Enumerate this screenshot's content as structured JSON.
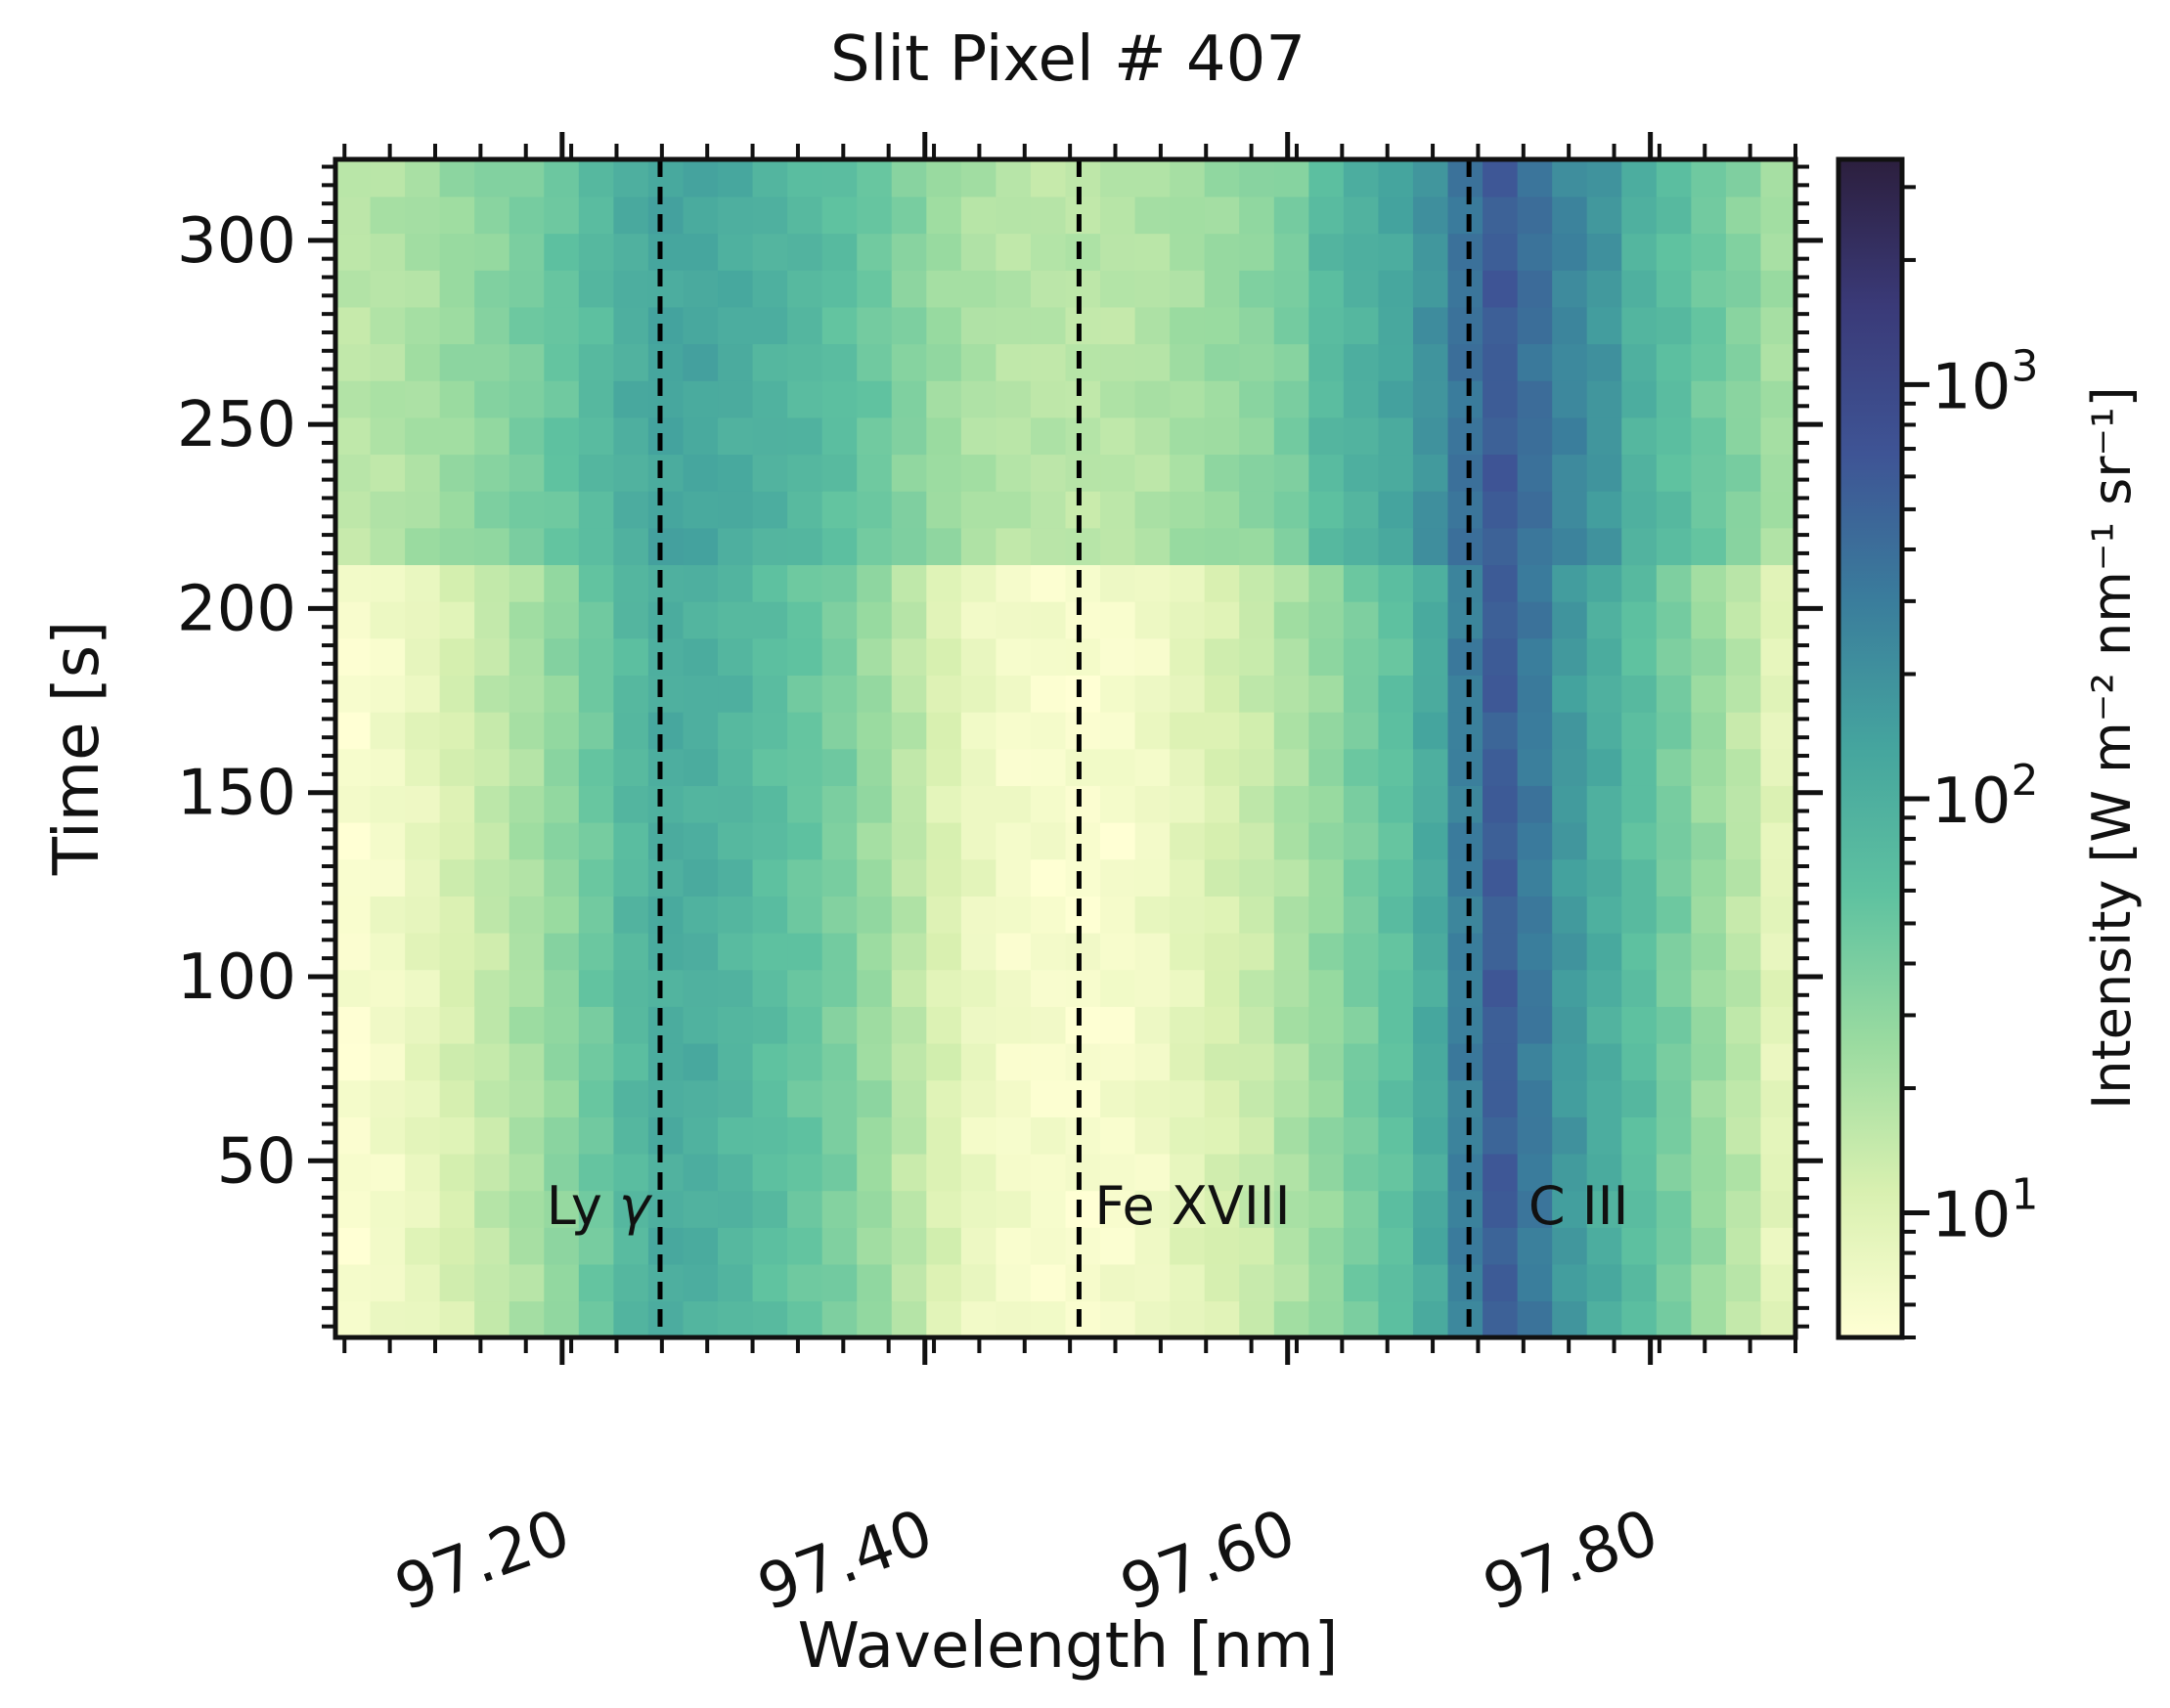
{
  "chart_data": {
    "type": "heatmap",
    "title": "Slit Pixel # 407",
    "xlabel": "Wavelength [nm]",
    "ylabel": "Time [s]",
    "colorbar_label": "Intensity [W m⁻² nm⁻¹ sr⁻¹]",
    "colormap": [
      "#ffffd4",
      "#d8f0b0",
      "#9adba0",
      "#5fc2a0",
      "#45a59e",
      "#3a7d9c",
      "#3e5495",
      "#3a3a78",
      "#2c1f3e"
    ],
    "xlim": [
      97.075,
      97.88
    ],
    "ylim": [
      2,
      322
    ],
    "x_ticks": [
      97.2,
      97.4,
      97.6,
      97.8
    ],
    "x_tick_labels": [
      "97.20",
      "97.40",
      "97.60",
      "97.80"
    ],
    "y_ticks": [
      50,
      100,
      150,
      200,
      250,
      300
    ],
    "y_tick_labels": [
      "50",
      "100",
      "150",
      "200",
      "250",
      "300"
    ],
    "colorbar_scale": "log",
    "colorbar_range": [
      5,
      3500
    ],
    "colorbar_ticks": [
      {
        "value": 10,
        "base": "10",
        "exp": "1"
      },
      {
        "value": 100,
        "base": "10",
        "exp": "2"
      },
      {
        "value": 1000,
        "base": "10",
        "exp": "3"
      }
    ],
    "grid": false,
    "wavelength_bins": 42,
    "time_bins": 32,
    "time_shift_s": 218,
    "wavelength_profile_log10": [
      0.75,
      0.82,
      0.92,
      1.05,
      1.18,
      1.32,
      1.48,
      1.68,
      1.88,
      2.02,
      2.0,
      1.92,
      1.82,
      1.72,
      1.6,
      1.42,
      1.22,
      1.02,
      0.88,
      0.8,
      0.78,
      0.76,
      0.78,
      0.84,
      0.95,
      1.05,
      1.15,
      1.3,
      1.45,
      1.62,
      1.78,
      2.05,
      2.45,
      2.75,
      2.5,
      2.22,
      2.02,
      1.82,
      1.62,
      1.42,
      1.22,
      0.95
    ],
    "lines": [
      {
        "label": "Ly",
        "greek": "γ",
        "wavelength": 97.254
      },
      {
        "label": "Fe XVIII",
        "wavelength": 97.485
      },
      {
        "label": "C III",
        "wavelength": 97.7
      }
    ]
  }
}
